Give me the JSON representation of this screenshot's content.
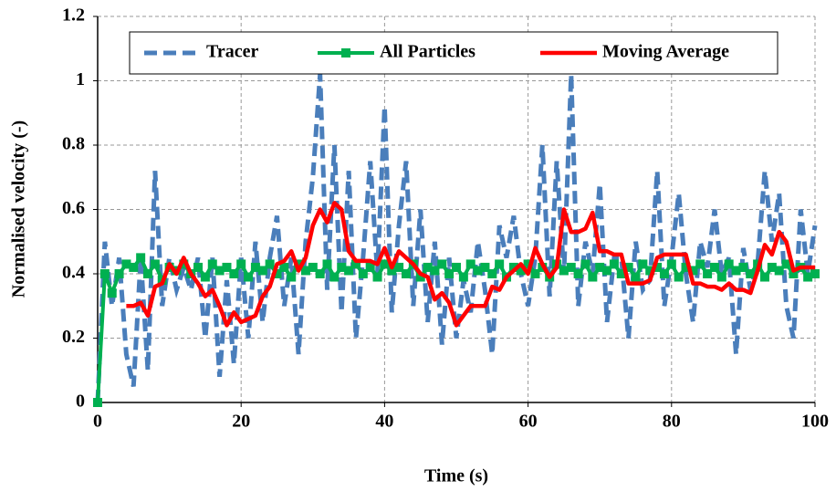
{
  "chart_data": {
    "type": "line",
    "xlabel": "Time (s)",
    "ylabel": "Normalised  velocity (-)",
    "xlim": [
      0,
      100
    ],
    "xticks": [
      0,
      20,
      40,
      60,
      80,
      100
    ],
    "ylim": [
      0,
      1.2
    ],
    "yticks": [
      0,
      0.2,
      0.4,
      0.6,
      0.8,
      1,
      1.2
    ],
    "grid": true,
    "legend": "top",
    "series": [
      {
        "name": "Tracer",
        "color": "#4a7ebb",
        "style": "dashed",
        "x": [
          0,
          1,
          2,
          3,
          4,
          5,
          6,
          7,
          8,
          9,
          10,
          11,
          12,
          13,
          14,
          15,
          16,
          17,
          18,
          19,
          20,
          21,
          22,
          23,
          24,
          25,
          26,
          27,
          28,
          29,
          30,
          31,
          32,
          33,
          34,
          35,
          36,
          37,
          38,
          39,
          40,
          41,
          42,
          43,
          44,
          45,
          46,
          47,
          48,
          49,
          50,
          51,
          52,
          53,
          54,
          55,
          56,
          57,
          58,
          59,
          60,
          61,
          62,
          63,
          64,
          65,
          66,
          67,
          68,
          69,
          70,
          71,
          72,
          73,
          74,
          75,
          76,
          77,
          78,
          79,
          80,
          81,
          82,
          83,
          84,
          85,
          86,
          87,
          88,
          89,
          90,
          91,
          92,
          93,
          94,
          95,
          96,
          97,
          98,
          99,
          100
        ],
        "values": [
          0,
          0.5,
          0.3,
          0.45,
          0.15,
          0.05,
          0.45,
          0.1,
          0.72,
          0.3,
          0.45,
          0.35,
          0.42,
          0.35,
          0.45,
          0.2,
          0.45,
          0.08,
          0.38,
          0.12,
          0.45,
          0.2,
          0.5,
          0.25,
          0.45,
          0.58,
          0.3,
          0.45,
          0.15,
          0.5,
          0.7,
          1.02,
          0.35,
          0.8,
          0.28,
          0.72,
          0.2,
          0.45,
          0.75,
          0.4,
          0.92,
          0.28,
          0.55,
          0.75,
          0.3,
          0.6,
          0.25,
          0.5,
          0.18,
          0.45,
          0.2,
          0.38,
          0.28,
          0.5,
          0.35,
          0.15,
          0.55,
          0.45,
          0.58,
          0.4,
          0.3,
          0.45,
          0.8,
          0.33,
          0.75,
          0.4,
          1.02,
          0.3,
          0.5,
          0.4,
          0.68,
          0.25,
          0.45,
          0.45,
          0.2,
          0.5,
          0.35,
          0.38,
          0.72,
          0.3,
          0.45,
          0.65,
          0.4,
          0.25,
          0.5,
          0.42,
          0.6,
          0.4,
          0.45,
          0.15,
          0.48,
          0.35,
          0.43,
          0.72,
          0.5,
          0.65,
          0.3,
          0.2,
          0.6,
          0.4,
          0.55
        ]
      },
      {
        "name": "All Particles",
        "color": "#00b050",
        "style": "markers",
        "x": [
          0,
          1,
          2,
          3,
          4,
          5,
          6,
          7,
          8,
          9,
          10,
          11,
          12,
          13,
          14,
          15,
          16,
          17,
          18,
          19,
          20,
          21,
          22,
          23,
          24,
          25,
          26,
          27,
          28,
          29,
          30,
          31,
          32,
          33,
          34,
          35,
          36,
          37,
          38,
          39,
          40,
          41,
          42,
          43,
          44,
          45,
          46,
          47,
          48,
          49,
          50,
          51,
          52,
          53,
          54,
          55,
          56,
          57,
          58,
          59,
          60,
          61,
          62,
          63,
          64,
          65,
          66,
          67,
          68,
          69,
          70,
          71,
          72,
          73,
          74,
          75,
          76,
          77,
          78,
          79,
          80,
          81,
          82,
          83,
          84,
          85,
          86,
          87,
          88,
          89,
          90,
          91,
          92,
          93,
          94,
          95,
          96,
          97,
          98,
          99,
          100
        ],
        "values": [
          0,
          0.4,
          0.34,
          0.4,
          0.43,
          0.42,
          0.45,
          0.4,
          0.43,
          0.38,
          0.42,
          0.41,
          0.43,
          0.4,
          0.42,
          0.39,
          0.43,
          0.41,
          0.42,
          0.4,
          0.43,
          0.39,
          0.42,
          0.41,
          0.43,
          0.4,
          0.42,
          0.39,
          0.43,
          0.41,
          0.42,
          0.4,
          0.43,
          0.39,
          0.42,
          0.41,
          0.43,
          0.4,
          0.42,
          0.39,
          0.43,
          0.41,
          0.42,
          0.4,
          0.43,
          0.39,
          0.42,
          0.41,
          0.43,
          0.4,
          0.42,
          0.39,
          0.43,
          0.41,
          0.42,
          0.4,
          0.43,
          0.39,
          0.42,
          0.41,
          0.43,
          0.4,
          0.42,
          0.39,
          0.43,
          0.41,
          0.42,
          0.4,
          0.43,
          0.39,
          0.42,
          0.41,
          0.43,
          0.4,
          0.42,
          0.39,
          0.43,
          0.41,
          0.42,
          0.4,
          0.43,
          0.39,
          0.42,
          0.41,
          0.43,
          0.4,
          0.42,
          0.39,
          0.43,
          0.41,
          0.42,
          0.4,
          0.43,
          0.39,
          0.42,
          0.41,
          0.43,
          0.4,
          0.42,
          0.39,
          0.4
        ]
      },
      {
        "name": "Moving Average",
        "color": "#ff0000",
        "style": "solid",
        "x": [
          4,
          5,
          6,
          7,
          8,
          9,
          10,
          11,
          12,
          13,
          14,
          15,
          16,
          17,
          18,
          19,
          20,
          21,
          22,
          23,
          24,
          25,
          26,
          27,
          28,
          29,
          30,
          31,
          32,
          33,
          34,
          35,
          36,
          37,
          38,
          39,
          40,
          41,
          42,
          43,
          44,
          45,
          46,
          47,
          48,
          49,
          50,
          51,
          52,
          53,
          54,
          55,
          56,
          57,
          58,
          59,
          60,
          61,
          62,
          63,
          64,
          65,
          66,
          67,
          68,
          69,
          70,
          71,
          72,
          73,
          74,
          75,
          76,
          77,
          78,
          79,
          80,
          81,
          82,
          83,
          84,
          85,
          86,
          87,
          88,
          89,
          90,
          91,
          92,
          93,
          94,
          95,
          96,
          97,
          98,
          99,
          100
        ],
        "values": [
          0.3,
          0.3,
          0.31,
          0.27,
          0.36,
          0.37,
          0.43,
          0.4,
          0.45,
          0.4,
          0.37,
          0.33,
          0.35,
          0.3,
          0.24,
          0.28,
          0.25,
          0.26,
          0.27,
          0.33,
          0.36,
          0.43,
          0.44,
          0.47,
          0.41,
          0.45,
          0.55,
          0.6,
          0.56,
          0.62,
          0.6,
          0.47,
          0.44,
          0.44,
          0.44,
          0.43,
          0.48,
          0.42,
          0.47,
          0.45,
          0.43,
          0.4,
          0.39,
          0.32,
          0.34,
          0.31,
          0.24,
          0.27,
          0.3,
          0.3,
          0.3,
          0.36,
          0.35,
          0.39,
          0.41,
          0.43,
          0.4,
          0.48,
          0.43,
          0.39,
          0.42,
          0.6,
          0.53,
          0.53,
          0.54,
          0.59,
          0.47,
          0.47,
          0.46,
          0.46,
          0.37,
          0.37,
          0.37,
          0.38,
          0.45,
          0.46,
          0.46,
          0.46,
          0.46,
          0.37,
          0.37,
          0.36,
          0.36,
          0.35,
          0.37,
          0.35,
          0.35,
          0.34,
          0.41,
          0.49,
          0.46,
          0.53,
          0.5,
          0.41,
          0.42,
          0.42,
          0.42
        ]
      }
    ]
  }
}
